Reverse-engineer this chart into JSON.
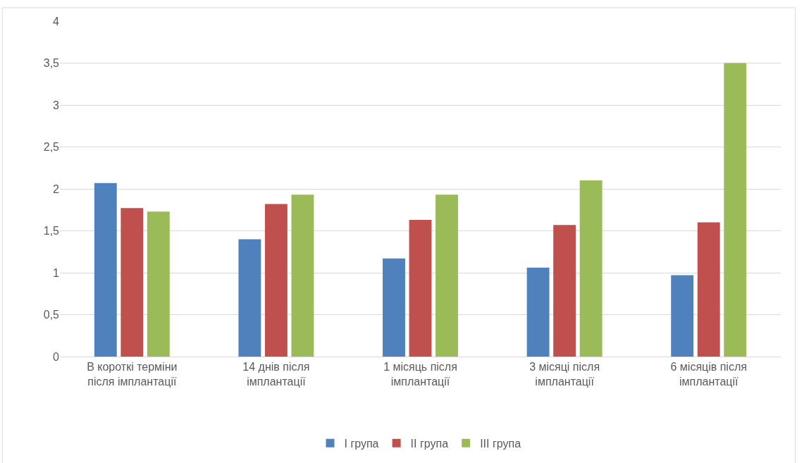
{
  "chart_data": {
    "type": "bar",
    "categories": [
      "В короткі терміни після імплантації",
      "14 днів після імплантації",
      "1 місяць після імплантації",
      "3 місяці після імплантації",
      "6 місяців після імплантації"
    ],
    "series": [
      {
        "name": "I група",
        "color": "#4f81bd",
        "values": [
          2.07,
          1.4,
          1.17,
          1.06,
          0.97
        ]
      },
      {
        "name": "II група",
        "color": "#c0504d",
        "values": [
          1.77,
          1.82,
          1.63,
          1.57,
          1.6
        ]
      },
      {
        "name": "III група",
        "color": "#9bbb59",
        "values": [
          1.73,
          1.93,
          1.93,
          2.1,
          3.5
        ]
      }
    ],
    "ylim": [
      0,
      4
    ],
    "yticks": [
      0,
      {
        "value": 0.5,
        "label": "0,5"
      },
      1,
      {
        "value": 1.5,
        "label": "1,5"
      },
      2,
      {
        "value": 2.5,
        "label": "2,5"
      },
      3,
      {
        "value": 3.5,
        "label": "3,5"
      },
      4
    ],
    "grid": "y",
    "legend": "bottom"
  }
}
